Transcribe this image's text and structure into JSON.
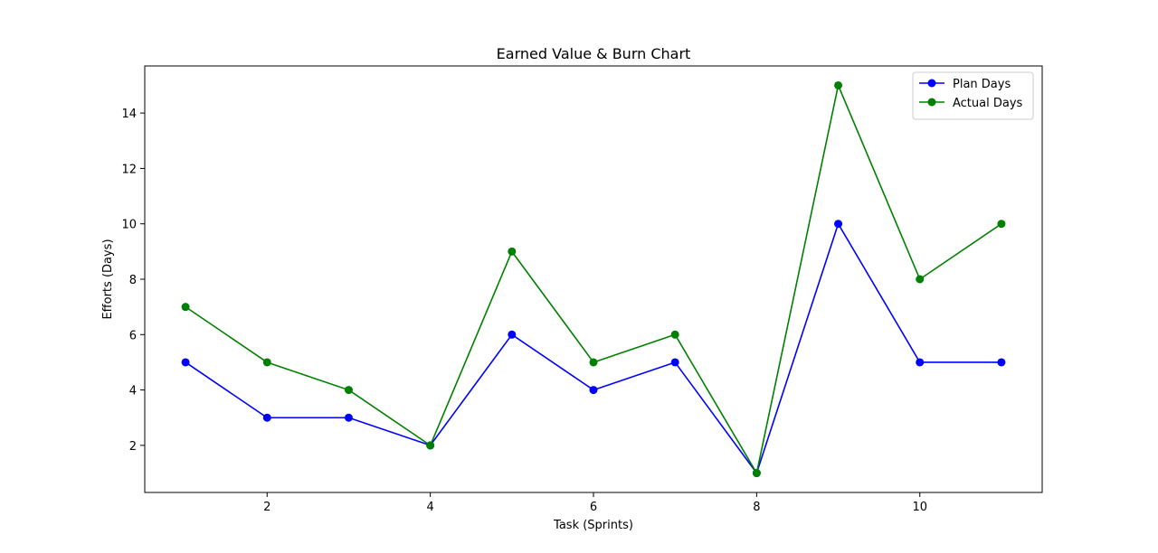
{
  "chart_data": {
    "type": "line",
    "title": "Earned Value & Burn Chart",
    "xlabel": "Task (Sprints)",
    "ylabel": "Efforts (Days)",
    "x": [
      1,
      2,
      3,
      4,
      5,
      6,
      7,
      8,
      9,
      10,
      11
    ],
    "xlim": [
      0.5,
      11.5
    ],
    "ylim": [
      0.3,
      15.7
    ],
    "xticks": [
      2,
      4,
      6,
      8,
      10
    ],
    "yticks": [
      2,
      4,
      6,
      8,
      10,
      12,
      14
    ],
    "grid": false,
    "legend_position": "top-right",
    "series": [
      {
        "name": "Plan Days",
        "color": "#0000ff",
        "marker": "circle",
        "values": [
          5,
          3,
          3,
          2,
          6,
          4,
          5,
          1,
          10,
          5,
          5
        ]
      },
      {
        "name": "Actual Days",
        "color": "#008000",
        "marker": "circle",
        "values": [
          7,
          5,
          4,
          2,
          9,
          5,
          6,
          1,
          15,
          8,
          10
        ]
      }
    ]
  }
}
